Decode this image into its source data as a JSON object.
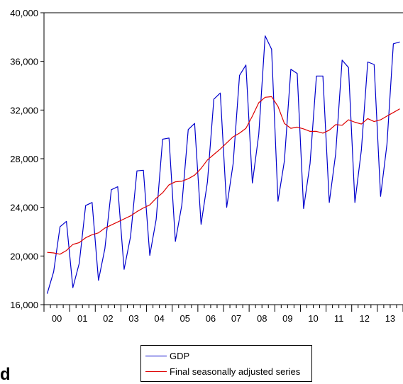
{
  "chart_data": {
    "type": "line",
    "x_tick_labels": [
      "00",
      "01",
      "02",
      "03",
      "04",
      "05",
      "06",
      "07",
      "08",
      "09",
      "10",
      "11",
      "12",
      "13"
    ],
    "x_unit": "year (quarterly data, 2000Q1-2013Q4)",
    "y_ticks": [
      16000,
      20000,
      24000,
      28000,
      32000,
      36000,
      40000
    ],
    "y_tick_labels": [
      "16,000",
      "20,000",
      "24,000",
      "28,000",
      "32,000",
      "36,000",
      "40,000"
    ],
    "ylim": [
      16000,
      40000
    ],
    "grid": false,
    "legend_placement": "bottom-center",
    "series": [
      {
        "name": "GDP",
        "color": "#0000cc",
        "values": [
          16900,
          18700,
          22400,
          22850,
          17400,
          19400,
          24150,
          24400,
          18000,
          20600,
          25450,
          25700,
          18900,
          21600,
          27000,
          27050,
          20050,
          23000,
          29600,
          29700,
          21200,
          24200,
          30400,
          30900,
          22600,
          26100,
          32900,
          33400,
          24000,
          27600,
          34850,
          35700,
          26000,
          30000,
          38100,
          37000,
          24500,
          27800,
          35350,
          35000,
          23900,
          27600,
          34800,
          34800,
          24400,
          28400,
          36100,
          35500,
          24400,
          28700,
          35950,
          35750,
          24900,
          29200,
          37450,
          37600
        ]
      },
      {
        "name": "Final seasonally adjusted series",
        "color": "#dd0000",
        "values": [
          20300,
          20250,
          20150,
          20450,
          20950,
          21100,
          21500,
          21750,
          21900,
          22300,
          22550,
          22800,
          23050,
          23300,
          23650,
          23950,
          24200,
          24750,
          25200,
          25850,
          26100,
          26150,
          26350,
          26650,
          27200,
          27900,
          28350,
          28800,
          29300,
          29800,
          30100,
          30500,
          31500,
          32600,
          33050,
          33100,
          32300,
          30900,
          30500,
          30600,
          30450,
          30250,
          30250,
          30100,
          30350,
          30800,
          30750,
          31200,
          31000,
          30850,
          31300,
          31050,
          31200,
          31500,
          31800,
          32100
        ]
      }
    ]
  },
  "legend": {
    "items": [
      {
        "label": "GDP",
        "color": "#0000cc"
      },
      {
        "label": "Final seasonally adjusted series",
        "color": "#dd0000"
      }
    ]
  },
  "stray_text": "d"
}
